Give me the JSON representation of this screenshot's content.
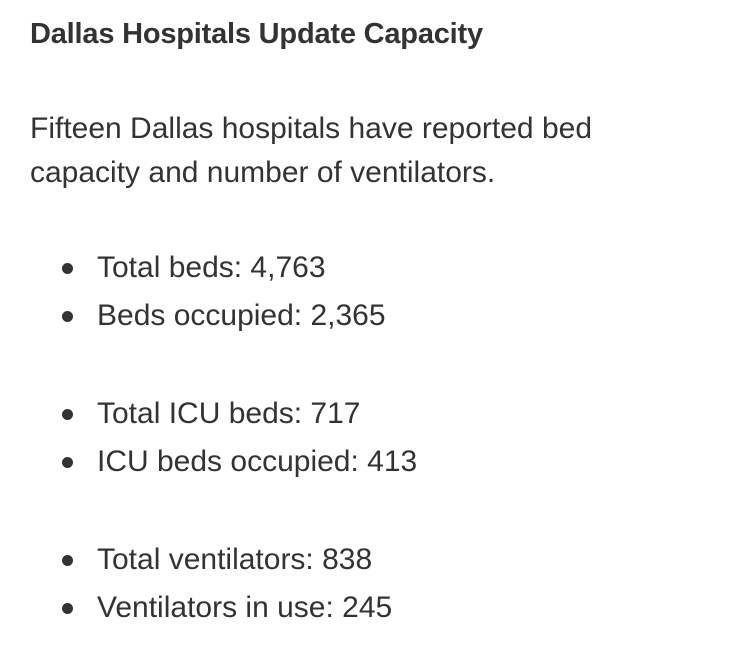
{
  "article": {
    "title": "Dallas Hospitals Update Capacity",
    "intro_line1": "Fifteen Dallas hospitals have reported bed",
    "intro_line2": "capacity and number of ventilators."
  },
  "stats": {
    "beds": [
      "Total beds: 4,763",
      "Beds occupied: 2,365"
    ],
    "icu": [
      "Total ICU beds: 717",
      "ICU beds occupied: 413"
    ],
    "ventilators": [
      "Total ventilators: 838",
      "Ventilators in use: 245"
    ]
  }
}
